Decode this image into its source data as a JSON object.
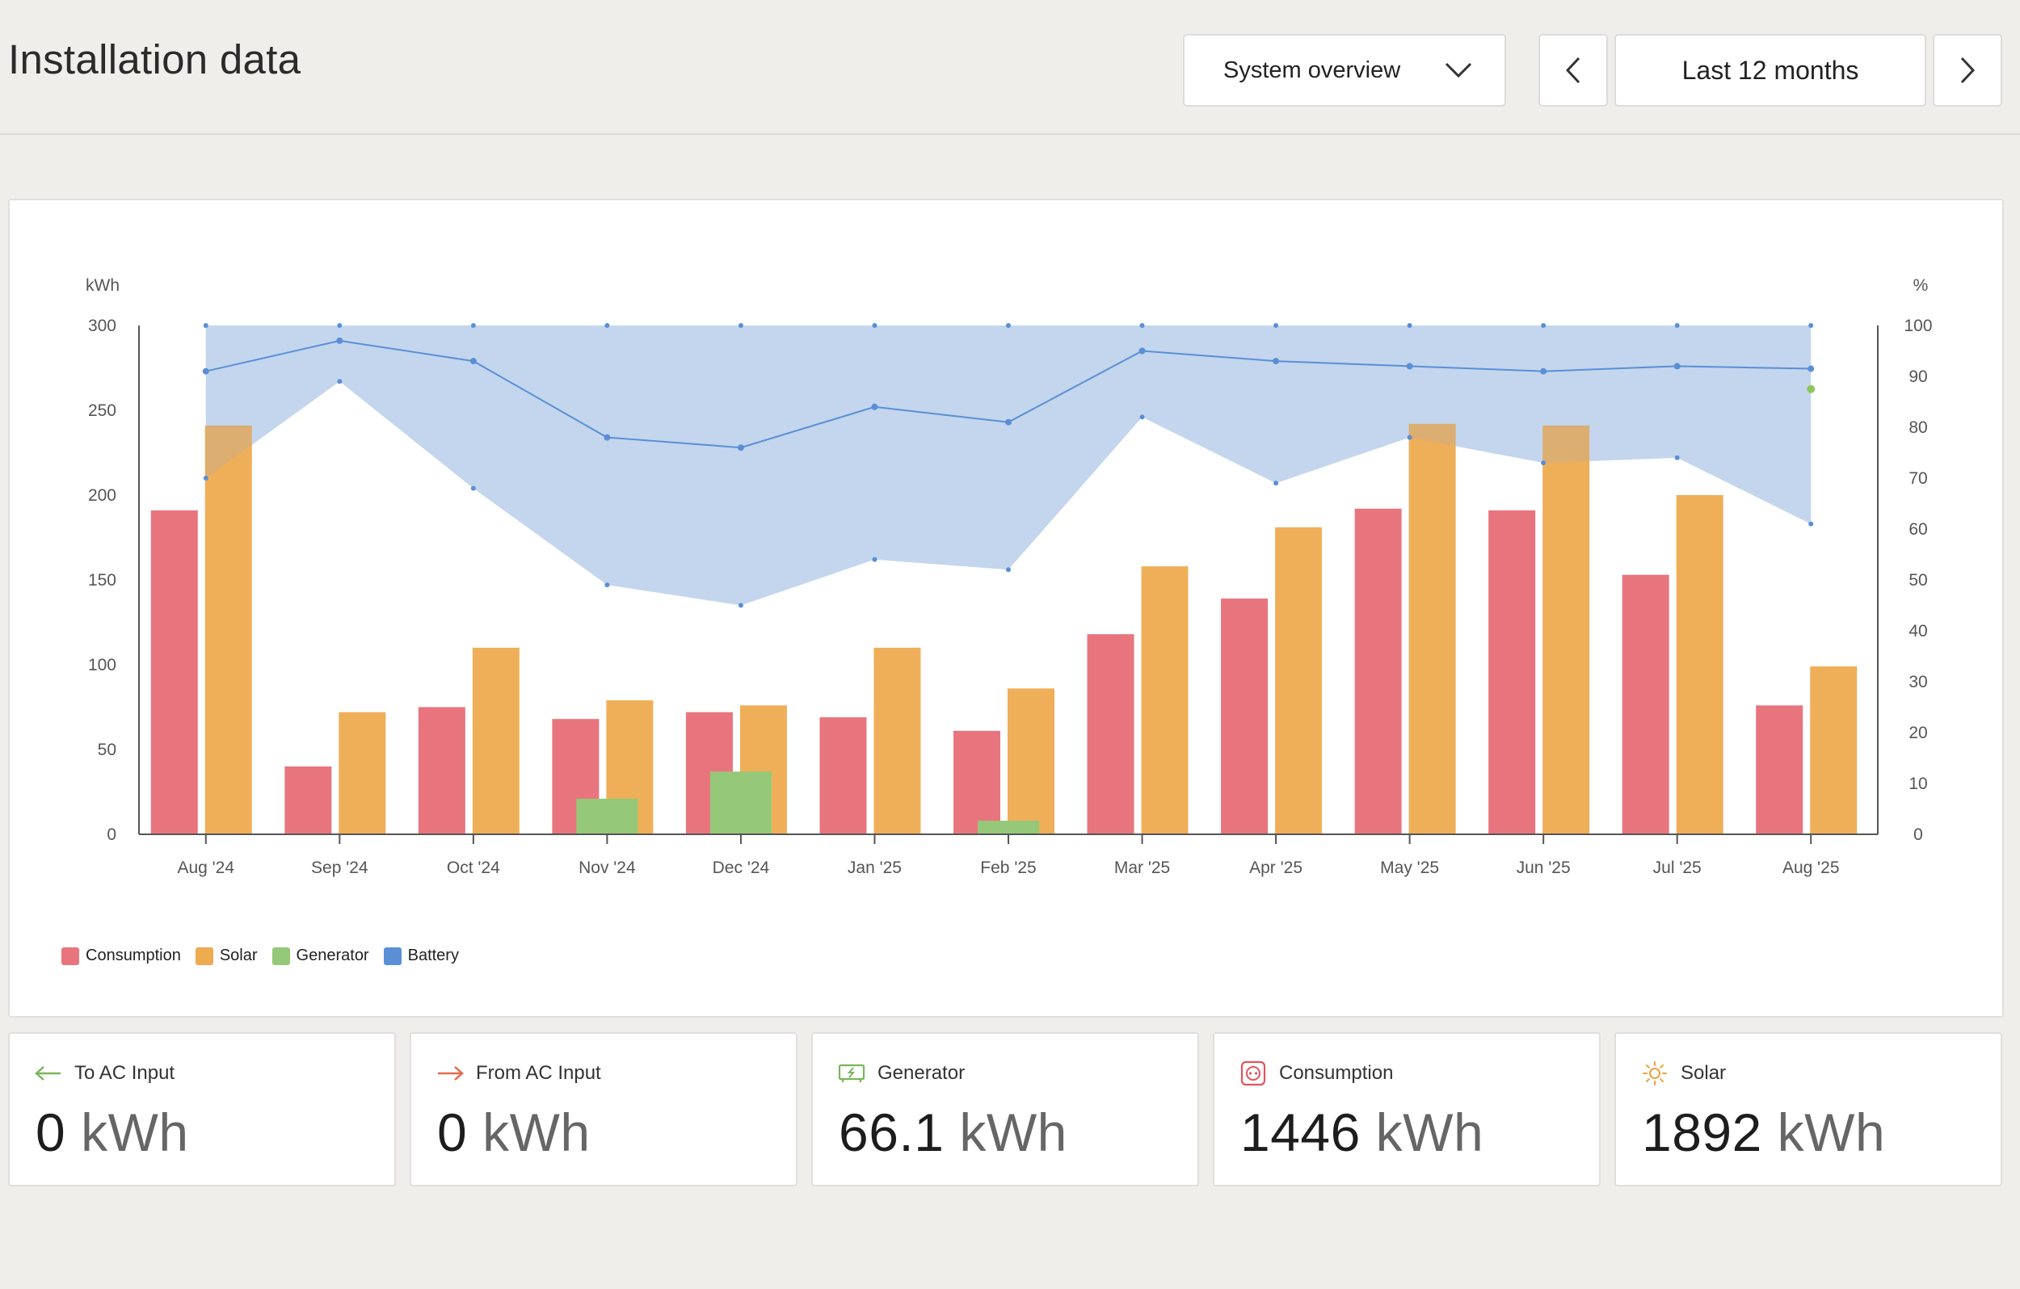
{
  "header": {
    "title": "Installation data",
    "view_select": "System overview",
    "range_label": "Last 12 months",
    "prev_icon": "chevron-left-icon",
    "next_icon": "chevron-right-icon",
    "dropdown_icon": "chevron-down-icon"
  },
  "chart_data": {
    "type": "bar",
    "categories": [
      "Aug '24",
      "Sep '24",
      "Oct '24",
      "Nov '24",
      "Dec '24",
      "Jan '25",
      "Feb '25",
      "Mar '25",
      "Apr '25",
      "May '25",
      "Jun '25",
      "Jul '25",
      "Aug '25"
    ],
    "y_left_label": "kWh",
    "y_right_label": "%",
    "ylim_left": [
      0,
      300
    ],
    "ylim_right": [
      0,
      100
    ],
    "yticks_left": [
      0,
      50,
      100,
      150,
      200,
      250,
      300
    ],
    "yticks_right": [
      0,
      10,
      20,
      30,
      40,
      50,
      60,
      70,
      80,
      90,
      100
    ],
    "series": [
      {
        "name": "Consumption",
        "type": "bar",
        "axis": "left",
        "color": "#e8757e",
        "values": [
          191,
          40,
          75,
          68,
          72,
          69,
          61,
          118,
          139,
          192,
          191,
          153,
          76
        ]
      },
      {
        "name": "Solar",
        "type": "bar",
        "axis": "left",
        "color": "#eeab50",
        "values": [
          241,
          72,
          110,
          79,
          76,
          110,
          86,
          158,
          181,
          242,
          241,
          200,
          99
        ]
      },
      {
        "name": "Generator",
        "type": "bar",
        "axis": "left",
        "color": "#95c878",
        "values": [
          0,
          0,
          0,
          21,
          37,
          0,
          8,
          0,
          0,
          0,
          0,
          0,
          0
        ]
      },
      {
        "name": "Battery",
        "type": "line-band",
        "axis": "right",
        "color": "#5a8fd6",
        "max": [
          100,
          100,
          100,
          100,
          100,
          100,
          100,
          100,
          100,
          100,
          100,
          100,
          100
        ],
        "avg": [
          91,
          97,
          93,
          78,
          76,
          84,
          81,
          95,
          93,
          92,
          91,
          92,
          91.5
        ],
        "min": [
          70,
          89,
          68,
          49,
          45,
          54,
          52,
          82,
          69,
          78,
          73,
          74,
          61
        ]
      }
    ],
    "marker": {
      "x": "Aug '25",
      "value": 87.5,
      "axis": "right",
      "color": "#8cc65a"
    },
    "legend": {
      "position": "bottom-left"
    },
    "grid": false
  },
  "legend": [
    {
      "label": "Consumption",
      "color": "#e8757e"
    },
    {
      "label": "Solar",
      "color": "#eeab50"
    },
    {
      "label": "Generator",
      "color": "#95c878"
    },
    {
      "label": "Battery",
      "color": "#5a8fd6"
    }
  ],
  "stats": [
    {
      "label": "To AC Input",
      "value": "0",
      "unit": "kWh",
      "icon": "arrow-left-icon",
      "color": "#7ab55c"
    },
    {
      "label": "From AC Input",
      "value": "0",
      "unit": "kWh",
      "icon": "arrow-right-icon",
      "color": "#e56a4b"
    },
    {
      "label": "Generator",
      "value": "66.1",
      "unit": "kWh",
      "icon": "generator-icon",
      "color": "#7ab55c"
    },
    {
      "label": "Consumption",
      "value": "1446",
      "unit": "kWh",
      "icon": "socket-icon",
      "color": "#e0565c"
    },
    {
      "label": "Solar",
      "value": "1892",
      "unit": "kWh",
      "icon": "sun-icon",
      "color": "#eba13b"
    }
  ]
}
